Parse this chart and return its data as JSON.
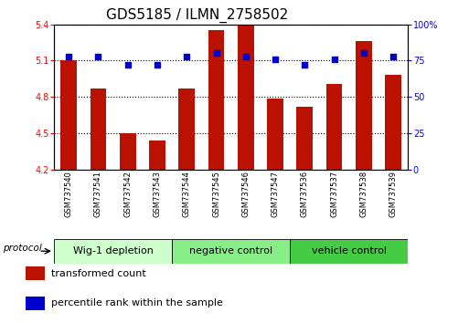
{
  "title": "GDS5185 / ILMN_2758502",
  "samples": [
    "GSM737540",
    "GSM737541",
    "GSM737542",
    "GSM737543",
    "GSM737544",
    "GSM737545",
    "GSM737546",
    "GSM737547",
    "GSM737536",
    "GSM737537",
    "GSM737538",
    "GSM737539"
  ],
  "bar_values": [
    5.1,
    4.87,
    4.5,
    4.44,
    4.87,
    5.35,
    5.39,
    4.79,
    4.72,
    4.91,
    5.26,
    4.98
  ],
  "dot_values": [
    78,
    78,
    72,
    72,
    78,
    80,
    78,
    76,
    72,
    76,
    80,
    78
  ],
  "bar_color": "#BB1100",
  "dot_color": "#0000CC",
  "ylim_left": [
    4.2,
    5.4
  ],
  "ylim_right": [
    0,
    100
  ],
  "yticks_left": [
    4.2,
    4.5,
    4.8,
    5.1,
    5.4
  ],
  "yticks_right": [
    0,
    25,
    50,
    75,
    100
  ],
  "ytick_labels_right": [
    "0",
    "25",
    "50",
    "75",
    "100%"
  ],
  "groups": [
    {
      "label": "Wig-1 depletion",
      "start": 0,
      "end": 4,
      "color": "#CCFFCC"
    },
    {
      "label": "negative control",
      "start": 4,
      "end": 8,
      "color": "#88EE88"
    },
    {
      "label": "vehicle control",
      "start": 8,
      "end": 12,
      "color": "#44CC44"
    }
  ],
  "protocol_label": "protocol",
  "legend_bar_label": "transformed count",
  "legend_dot_label": "percentile rank within the sample",
  "bar_width": 0.55,
  "title_fontsize": 11,
  "tick_label_fontsize": 7,
  "group_label_fontsize": 8,
  "legend_fontsize": 8,
  "sample_fontsize": 6
}
